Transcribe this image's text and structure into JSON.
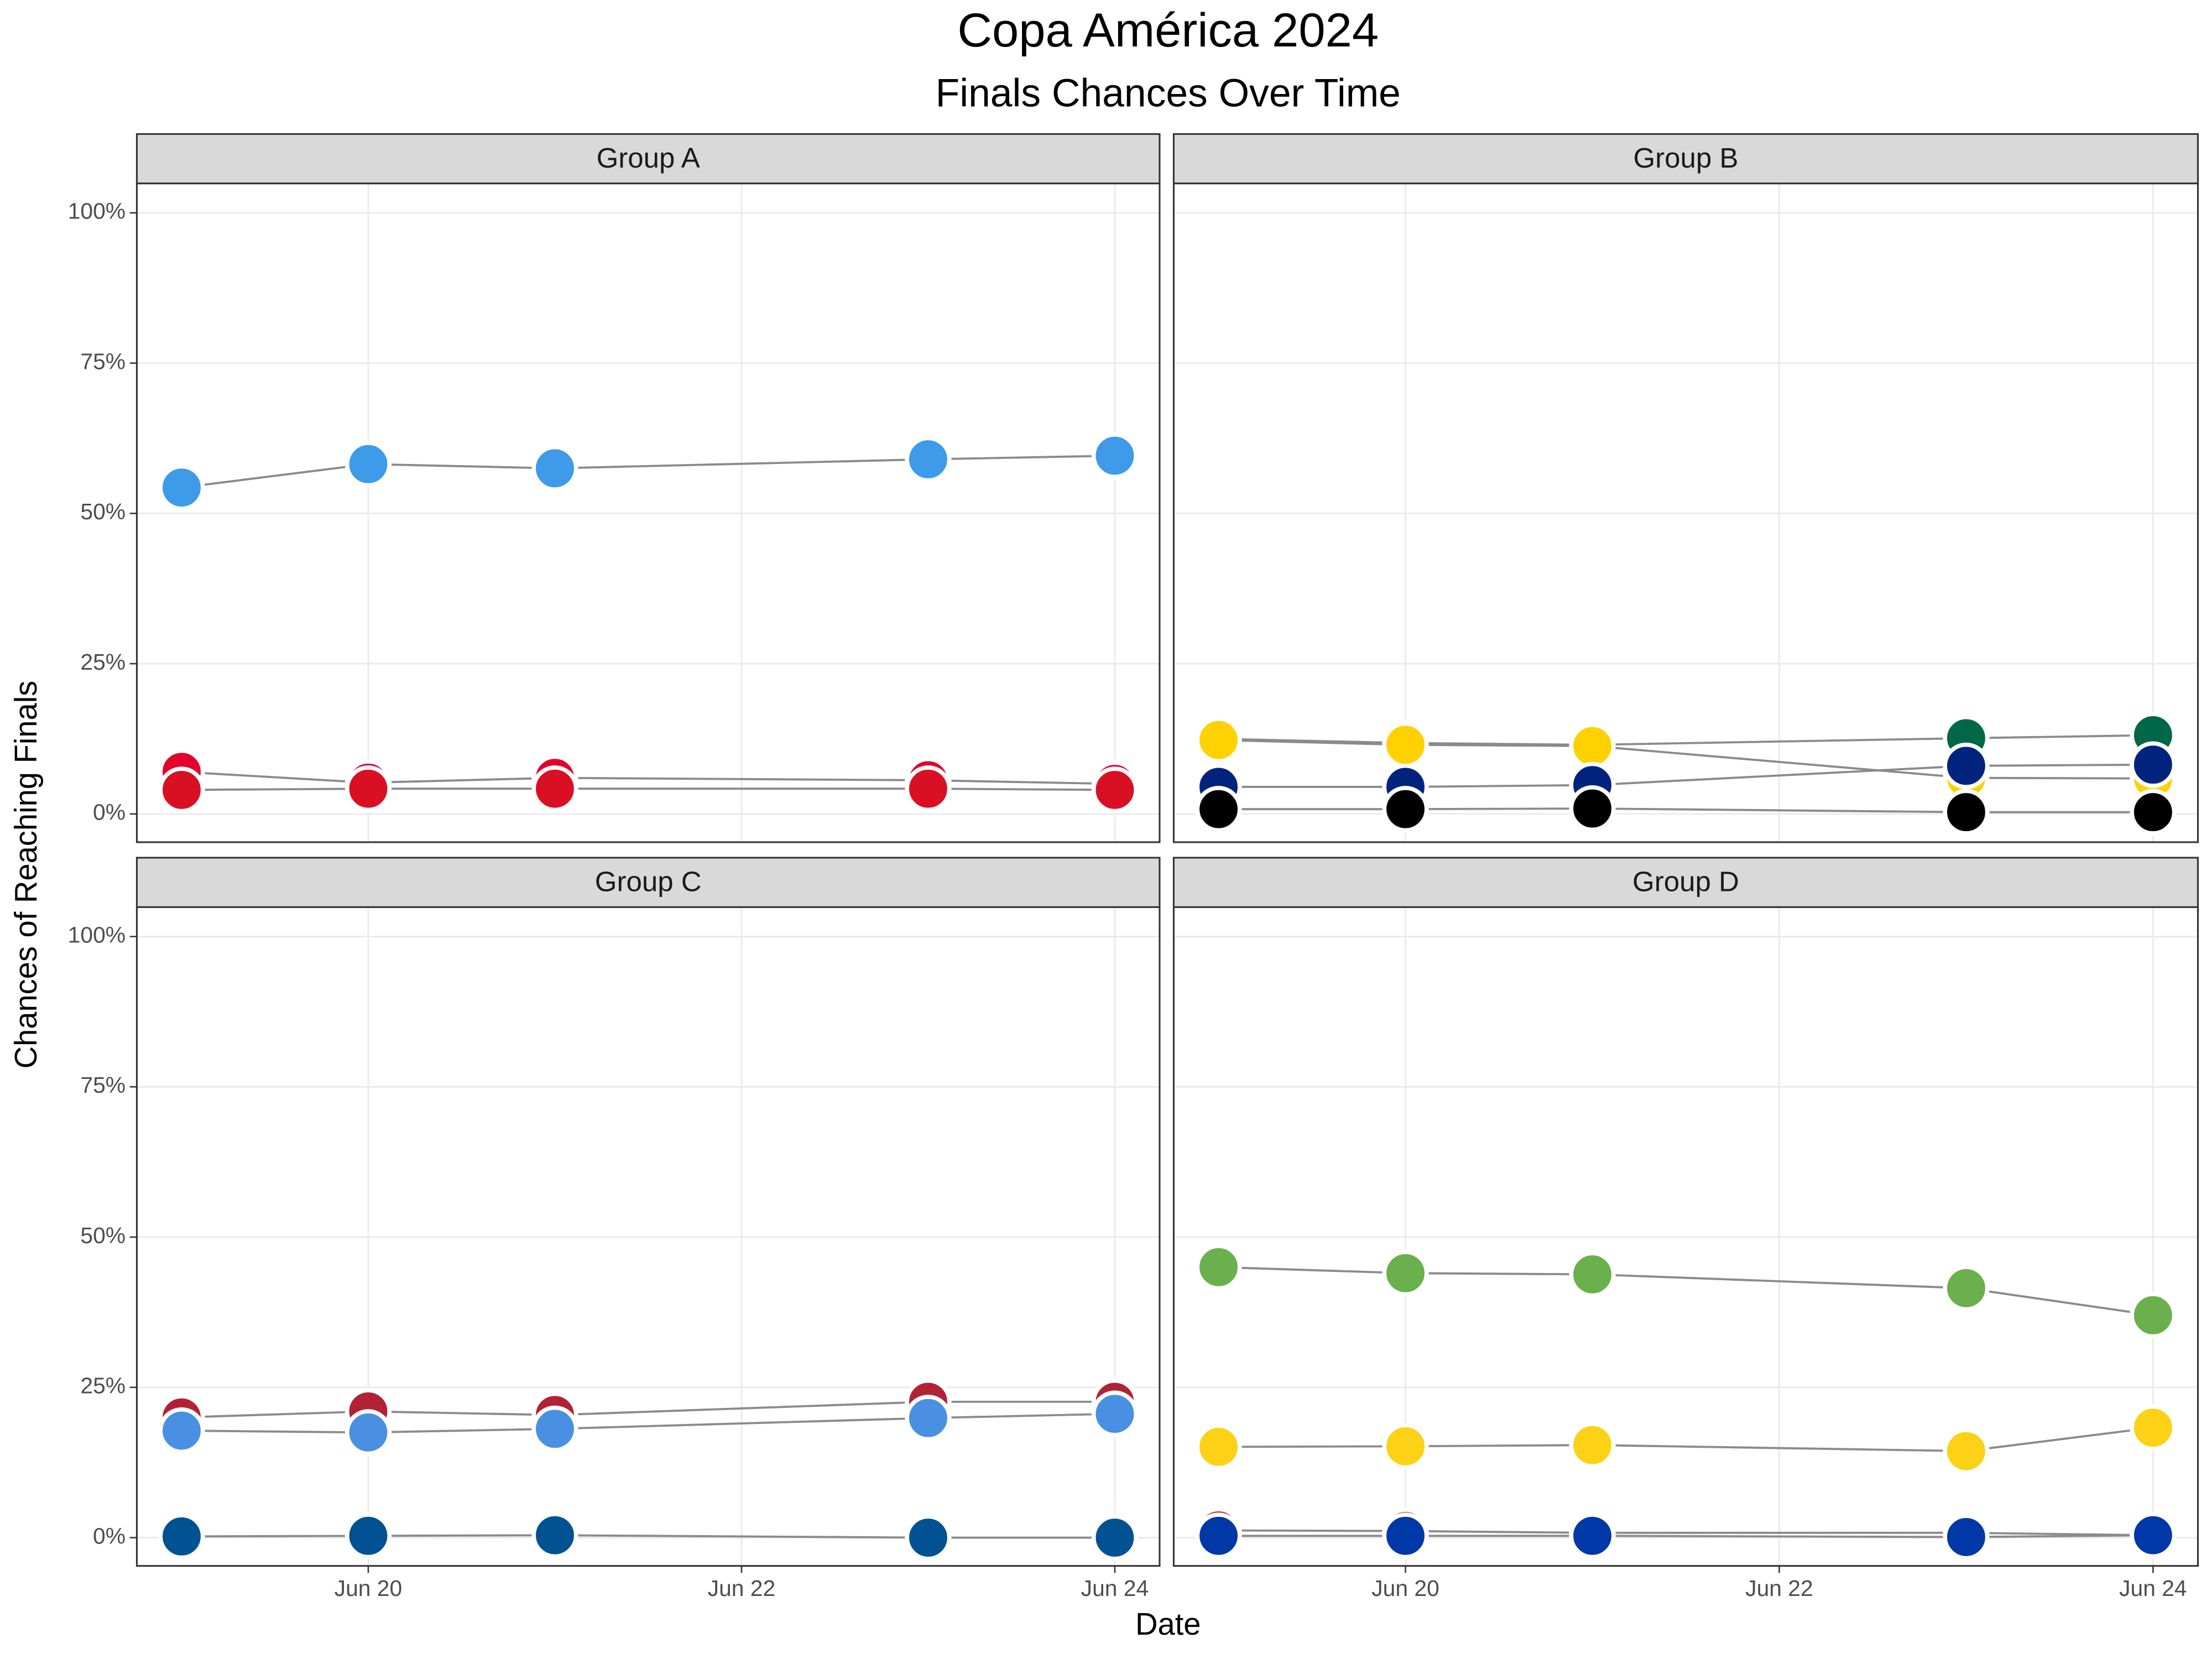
{
  "title": "Copa América 2024",
  "subtitle": "Finals Chances Over Time",
  "x_label": "Date",
  "y_label": "Chances of Reaching Finals",
  "chart_data": [
    {
      "type": "line",
      "title": "Group A",
      "x": [
        19,
        20,
        21,
        23,
        24
      ],
      "xlim": [
        18.76,
        24.24
      ],
      "xticks": [
        {
          "value": 20,
          "label": "Jun 20"
        },
        {
          "value": 22,
          "label": "Jun 22"
        },
        {
          "value": 24,
          "label": "Jun 24"
        }
      ],
      "ylim": [
        -4.7,
        104.9
      ],
      "yticks": [
        {
          "value": 0,
          "label": "0%"
        },
        {
          "value": 25,
          "label": "25%"
        },
        {
          "value": 50,
          "label": "50%"
        },
        {
          "value": 75,
          "label": "75%"
        },
        {
          "value": 100,
          "label": "100%"
        }
      ],
      "grid": true,
      "series": [
        {
          "color": "#3d9be9",
          "values": [
            54.3,
            58.2,
            57.5,
            59.0,
            59.6
          ]
        },
        {
          "color": "#e4002b",
          "values": [
            7.0,
            5.2,
            6.0,
            5.6,
            5.0
          ]
        },
        {
          "color": "#d91023",
          "values": [
            4.0,
            4.2,
            4.2,
            4.2,
            4.0
          ]
        }
      ]
    },
    {
      "type": "line",
      "title": "Group B",
      "x": [
        19,
        20,
        21,
        23,
        24
      ],
      "xlim": [
        18.76,
        24.24
      ],
      "xticks": [
        {
          "value": 20,
          "label": "Jun 20"
        },
        {
          "value": 22,
          "label": "Jun 22"
        },
        {
          "value": 24,
          "label": "Jun 24"
        }
      ],
      "ylim": [
        -4.7,
        104.9
      ],
      "yticks": [
        {
          "value": 0,
          "label": "0%"
        },
        {
          "value": 25,
          "label": "25%"
        },
        {
          "value": 50,
          "label": "50%"
        },
        {
          "value": 75,
          "label": "75%"
        },
        {
          "value": 100,
          "label": "100%"
        }
      ],
      "grid": true,
      "series": [
        {
          "color": "#006847",
          "values": [
            12.5,
            11.8,
            11.5,
            12.6,
            13.1
          ]
        },
        {
          "color": "#ffd100",
          "values": [
            12.3,
            11.5,
            11.3,
            6.0,
            5.9
          ]
        },
        {
          "color": "#00247d",
          "values": [
            4.5,
            4.5,
            4.8,
            8.0,
            8.2
          ]
        },
        {
          "color": "#000000",
          "values": [
            0.8,
            0.8,
            0.9,
            0.3,
            0.3
          ]
        }
      ]
    },
    {
      "type": "line",
      "title": "Group C",
      "x": [
        19,
        20,
        21,
        23,
        24
      ],
      "xlim": [
        18.76,
        24.24
      ],
      "xticks": [
        {
          "value": 20,
          "label": "Jun 20"
        },
        {
          "value": 22,
          "label": "Jun 22"
        },
        {
          "value": 24,
          "label": "Jun 24"
        }
      ],
      "ylim": [
        -4.7,
        104.9
      ],
      "yticks": [
        {
          "value": 0,
          "label": "0%"
        },
        {
          "value": 25,
          "label": "25%"
        },
        {
          "value": 50,
          "label": "50%"
        },
        {
          "value": 75,
          "label": "75%"
        },
        {
          "value": 100,
          "label": "100%"
        }
      ],
      "grid": true,
      "series": [
        {
          "color": "#b22234",
          "values": [
            20.0,
            21.0,
            20.4,
            22.6,
            22.6
          ]
        },
        {
          "color": "#4a90e2",
          "values": [
            17.8,
            17.5,
            18.1,
            19.9,
            20.6
          ]
        },
        {
          "color": "#005293",
          "values": [
            0.2,
            0.3,
            0.4,
            0.0,
            0.0
          ]
        }
      ]
    },
    {
      "type": "line",
      "title": "Group D",
      "x": [
        19,
        20,
        21,
        23,
        24
      ],
      "xlim": [
        18.76,
        24.24
      ],
      "xticks": [
        {
          "value": 20,
          "label": "Jun 20"
        },
        {
          "value": 22,
          "label": "Jun 22"
        },
        {
          "value": 24,
          "label": "Jun 24"
        }
      ],
      "ylim": [
        -4.7,
        104.9
      ],
      "yticks": [
        {
          "value": 0,
          "label": "0%"
        },
        {
          "value": 25,
          "label": "25%"
        },
        {
          "value": 50,
          "label": "50%"
        },
        {
          "value": 75,
          "label": "75%"
        },
        {
          "value": 100,
          "label": "100%"
        }
      ],
      "grid": true,
      "series": [
        {
          "color": "#6ab04c",
          "values": [
            45.0,
            44.0,
            43.8,
            41.5,
            37.0
          ]
        },
        {
          "color": "#fcd116",
          "values": [
            15.1,
            15.2,
            15.4,
            14.4,
            18.3
          ]
        },
        {
          "color": "#d52b1e",
          "values": [
            1.2,
            1.1,
            0.8,
            0.8,
            0.4
          ]
        },
        {
          "color": "#0038a8",
          "values": [
            0.3,
            0.3,
            0.3,
            0.1,
            0.4
          ]
        }
      ]
    }
  ]
}
